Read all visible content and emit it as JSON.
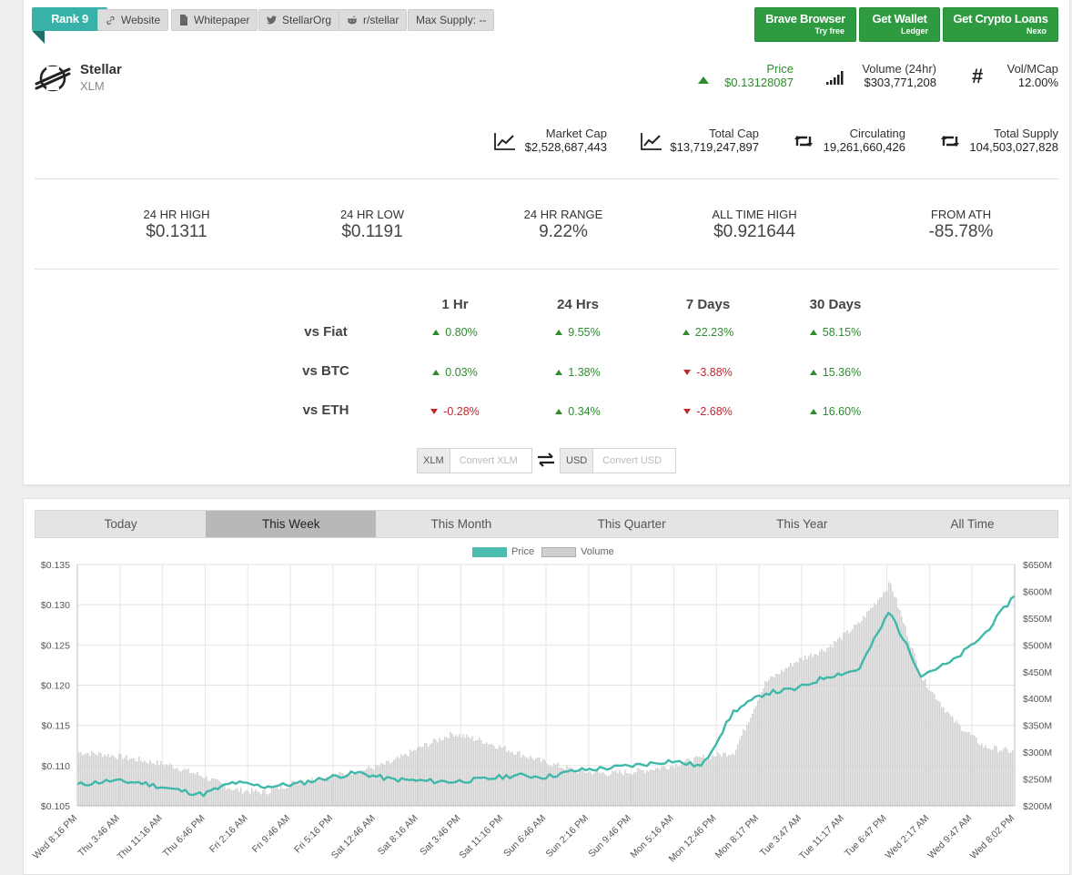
{
  "rank": "Rank 9",
  "links": {
    "website": "Website",
    "whitepaper": "Whitepaper",
    "twitter": "StellarOrg",
    "reddit": "r/stellar",
    "max_supply": "Max Supply: --"
  },
  "promos": [
    {
      "title": "Brave Browser",
      "sub": "Try free"
    },
    {
      "title": "Get Wallet",
      "sub": "Ledger"
    },
    {
      "title": "Get Crypto Loans",
      "sub": "Nexo"
    }
  ],
  "coin": {
    "name": "Stellar",
    "symbol": "XLM"
  },
  "stats": {
    "price": {
      "label": "Price",
      "value": "$0.13128087"
    },
    "volume": {
      "label": "Volume (24hr)",
      "value": "$303,771,208"
    },
    "vol_mcap": {
      "label": "Vol/MCap",
      "value": "12.00%"
    },
    "market_cap": {
      "label": "Market Cap",
      "value": "$2,528,687,443"
    },
    "total_cap": {
      "label": "Total Cap",
      "value": "$13,719,247,897"
    },
    "circulating": {
      "label": "Circulating",
      "value": "19,261,660,426"
    },
    "total_supply": {
      "label": "Total Supply",
      "value": "104,503,027,828"
    }
  },
  "ranges": [
    {
      "label": "24 HR HIGH",
      "value": "$0.1311"
    },
    {
      "label": "24 HR LOW",
      "value": "$0.1191"
    },
    {
      "label": "24 HR RANGE",
      "value": "9.22%"
    },
    {
      "label": "ALL TIME HIGH",
      "value": "$0.921644"
    },
    {
      "label": "FROM ATH",
      "value": "-85.78%"
    }
  ],
  "performance": {
    "headers": [
      "1 Hr",
      "24 Hrs",
      "7 Days",
      "30 Days"
    ],
    "rows": [
      {
        "label": "vs Fiat",
        "values": [
          "0.80%",
          "9.55%",
          "22.23%",
          "58.15%"
        ],
        "dirs": [
          "up",
          "up",
          "up",
          "up"
        ]
      },
      {
        "label": "vs BTC",
        "values": [
          "0.03%",
          "1.38%",
          "-3.88%",
          "15.36%"
        ],
        "dirs": [
          "up",
          "up",
          "down",
          "up"
        ]
      },
      {
        "label": "vs ETH",
        "values": [
          "-0.28%",
          "0.34%",
          "-2.68%",
          "16.60%"
        ],
        "dirs": [
          "down",
          "up",
          "down",
          "up"
        ]
      }
    ]
  },
  "converter": {
    "from_prefix": "XLM",
    "from_placeholder": "Convert XLM",
    "to_prefix": "USD",
    "to_placeholder": "Convert USD"
  },
  "tabs": [
    "Today",
    "This Week",
    "This Month",
    "This Quarter",
    "This Year",
    "All Time"
  ],
  "active_tab": "This Week",
  "colors": {
    "accent": "#38b2a8",
    "green": "#2e9b40",
    "up": "#2e8b2e",
    "down": "#c0282f",
    "price_line": "#3fb8aa",
    "volume_fill": "#d0d0d0"
  },
  "chart_data": {
    "type": "line",
    "legend": [
      "Price",
      "Volume"
    ],
    "legend_position": "top-center",
    "grid": true,
    "y_left": {
      "ticks": [
        "$0.135",
        "$0.130",
        "$0.125",
        "$0.120",
        "$0.115",
        "$0.110",
        "$0.105"
      ],
      "range": [
        0.105,
        0.135
      ]
    },
    "y_right": {
      "ticks": [
        "$650M",
        "$600M",
        "$550M",
        "$500M",
        "$450M",
        "$400M",
        "$350M",
        "$300M",
        "$250M",
        "$200M"
      ],
      "range": [
        200,
        650
      ]
    },
    "x_ticks": [
      "Wed 8:16 PM",
      "Thu 3:46 AM",
      "Thu 11:16 AM",
      "Thu 6:46 PM",
      "Fri 2:16 AM",
      "Fri 9:46 AM",
      "Fri 5:16 PM",
      "Sat 12:46 AM",
      "Sat 8:16 AM",
      "Sat 3:46 PM",
      "Sat 11:16 PM",
      "Sun 6:46 AM",
      "Sun 2:16 PM",
      "Sun 9:46 PM",
      "Mon 5:16 AM",
      "Mon 12:46 PM",
      "Mon 8:17 PM",
      "Tue 3:47 AM",
      "Tue 11:17 AM",
      "Tue 6:47 PM",
      "Wed 2:17 AM",
      "Wed 9:47 AM",
      "Wed 8:02 PM"
    ],
    "series": [
      {
        "name": "Price",
        "values": [
          0.1076,
          0.1081,
          0.1079,
          0.1071,
          0.1064,
          0.1079,
          0.1074,
          0.1077,
          0.1085,
          0.1091,
          0.1083,
          0.1081,
          0.108,
          0.1083,
          0.1088,
          0.1086,
          0.1094,
          0.1097,
          0.1101,
          0.1106,
          0.1099,
          0.1167,
          0.119,
          0.1195,
          0.1211,
          0.1219,
          0.1292,
          0.1213,
          0.1229,
          0.1262,
          0.1312
        ]
      },
      {
        "name": "Volume",
        "values": [
          300,
          295,
          285,
          275,
          255,
          230,
          225,
          245,
          255,
          265,
          280,
          310,
          335,
          320,
          300,
          280,
          265,
          260,
          265,
          275,
          290,
          300,
          430,
          470,
          495,
          540,
          615,
          440,
          360,
          310,
          300
        ]
      }
    ]
  }
}
